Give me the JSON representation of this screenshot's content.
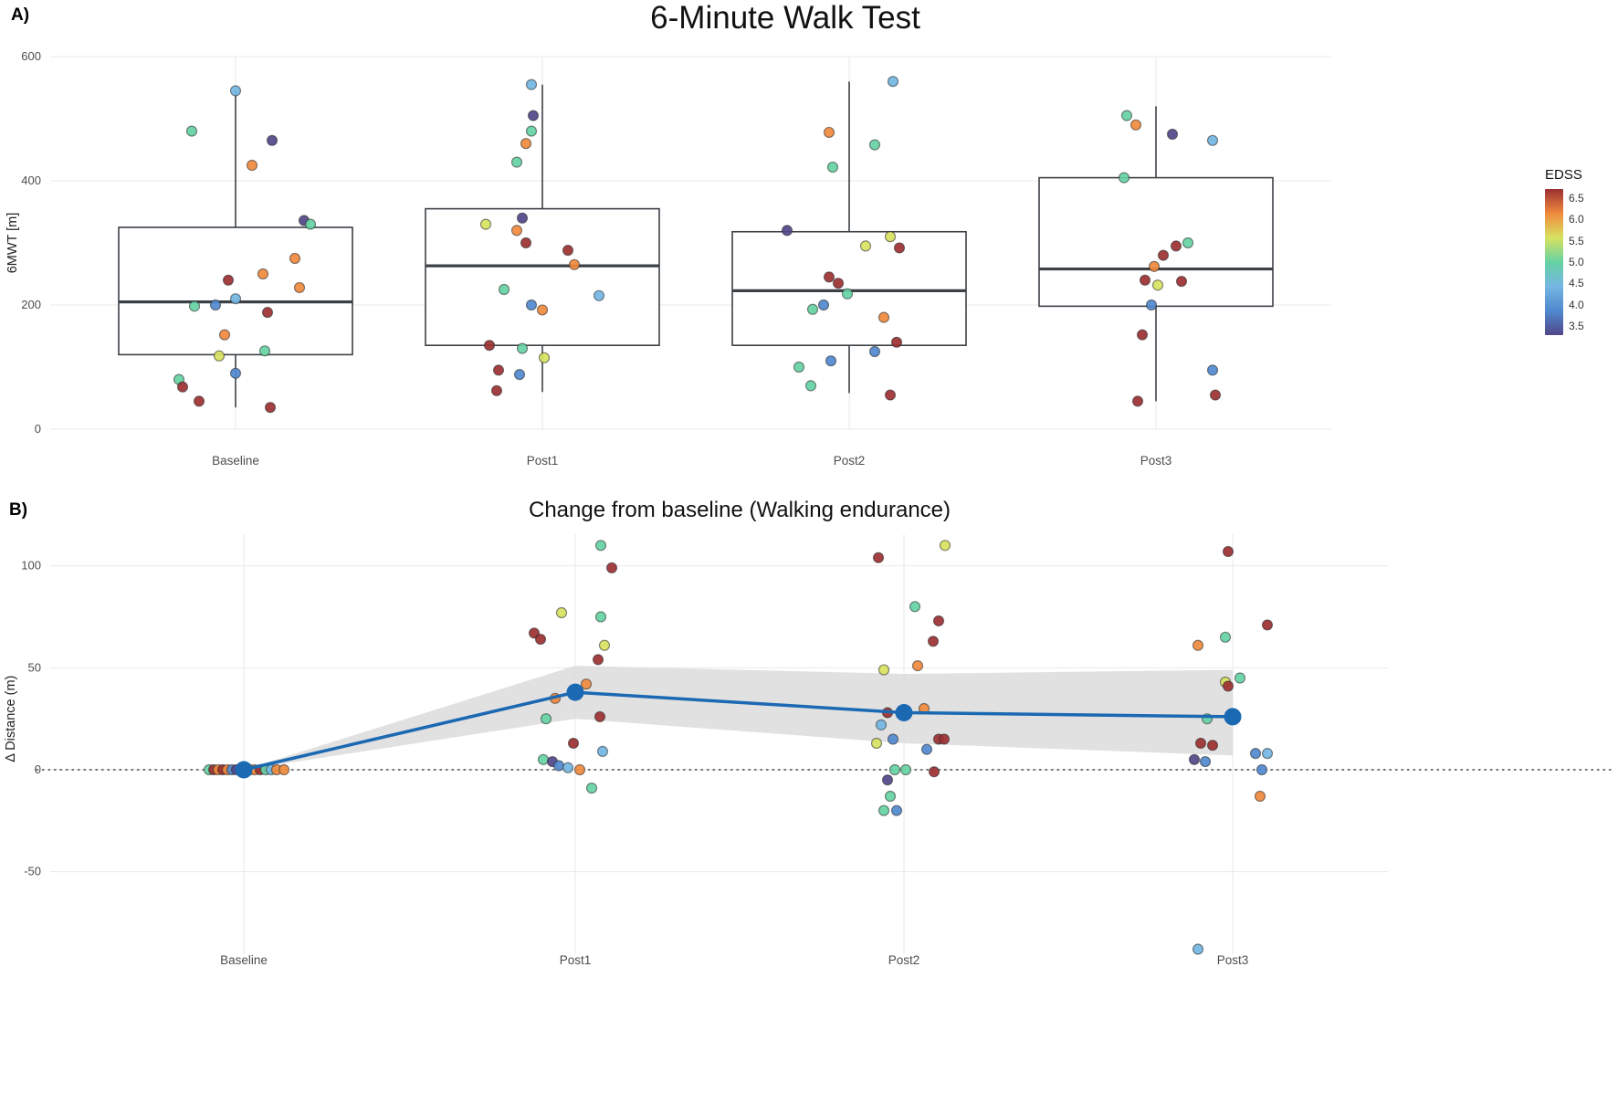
{
  "legend": {
    "title": "EDSS",
    "ticks": [
      "6.5",
      "6.0",
      "5.5",
      "5.0",
      "4.5",
      "4.0",
      "3.5"
    ],
    "stops": [
      {
        "v": 3.5,
        "c": "#514689"
      },
      {
        "v": 4.0,
        "c": "#5089cf"
      },
      {
        "v": 4.5,
        "c": "#74b6e3"
      },
      {
        "v": 5.0,
        "c": "#66d2a4"
      },
      {
        "v": 5.5,
        "c": "#d8e25f"
      },
      {
        "v": 6.0,
        "c": "#f08a3d"
      },
      {
        "v": 6.5,
        "c": "#9c3032"
      }
    ]
  },
  "colors": {
    "mean_line": "#1b69b2",
    "ribbon": "#d9d9d9",
    "box_stroke": "#3c4146",
    "grid": "#e9e9e9",
    "point_stroke": "rgba(40,40,40,0.55)",
    "zero_line": "#444444",
    "tick_text": "#4d4d4d",
    "background": "#ffffff"
  },
  "chart_data": [
    {
      "type": "box",
      "panel_label": "A)",
      "title": "6-Minute Walk Test",
      "ylabel": "6MWT [m]",
      "ylim": [
        0,
        600
      ],
      "yticks": [
        0,
        200,
        400,
        600
      ],
      "categories": [
        "Baseline",
        "Post1",
        "Post2",
        "Post3"
      ],
      "boxes": [
        {
          "lo": 35,
          "q1": 120,
          "median": 205,
          "q3": 325,
          "hi": 545
        },
        {
          "lo": 60,
          "q1": 135,
          "median": 263,
          "q3": 355,
          "hi": 555
        },
        {
          "lo": 58,
          "q1": 135,
          "median": 223,
          "q3": 318,
          "hi": 560
        },
        {
          "lo": 45,
          "q1": 198,
          "median": 258,
          "q3": 405,
          "hi": 520
        }
      ],
      "points": [
        [
          [
            -48,
            480,
            5.0
          ],
          [
            0,
            545,
            4.5
          ],
          [
            40,
            465,
            3.5
          ],
          [
            18,
            425,
            6.0
          ],
          [
            75,
            336,
            3.5
          ],
          [
            82,
            330,
            5.0
          ],
          [
            65,
            275,
            6.0
          ],
          [
            30,
            250,
            6.0
          ],
          [
            -8,
            240,
            6.5
          ],
          [
            70,
            228,
            6.0
          ],
          [
            0,
            210,
            4.5
          ],
          [
            -22,
            200,
            4.0
          ],
          [
            -45,
            198,
            5.0
          ],
          [
            35,
            188,
            6.5
          ],
          [
            -12,
            152,
            6.0
          ],
          [
            32,
            126,
            5.0
          ],
          [
            -18,
            118,
            5.5
          ],
          [
            0,
            90,
            4.0
          ],
          [
            -62,
            80,
            5.0
          ],
          [
            -58,
            68,
            6.5
          ],
          [
            -40,
            45,
            6.5
          ],
          [
            38,
            35,
            6.5
          ]
        ],
        [
          [
            -12,
            555,
            4.5
          ],
          [
            -10,
            505,
            3.5
          ],
          [
            -12,
            480,
            5.0
          ],
          [
            -18,
            460,
            6.0
          ],
          [
            -28,
            430,
            5.0
          ],
          [
            -62,
            330,
            5.5
          ],
          [
            -22,
            340,
            3.5
          ],
          [
            -28,
            320,
            6.0
          ],
          [
            -18,
            300,
            6.5
          ],
          [
            28,
            288,
            6.5
          ],
          [
            35,
            265,
            6.0
          ],
          [
            62,
            215,
            4.5
          ],
          [
            -42,
            225,
            5.0
          ],
          [
            -12,
            200,
            4.0
          ],
          [
            0,
            192,
            6.0
          ],
          [
            -58,
            135,
            6.5
          ],
          [
            -22,
            130,
            5.0
          ],
          [
            2,
            115,
            5.5
          ],
          [
            -48,
            95,
            6.5
          ],
          [
            -25,
            88,
            4.0
          ],
          [
            -50,
            62,
            6.5
          ]
        ],
        [
          [
            48,
            560,
            4.5
          ],
          [
            -22,
            478,
            6.0
          ],
          [
            28,
            458,
            5.0
          ],
          [
            -18,
            422,
            5.0
          ],
          [
            -68,
            320,
            3.5
          ],
          [
            18,
            295,
            5.5
          ],
          [
            45,
            310,
            5.5
          ],
          [
            55,
            292,
            6.5
          ],
          [
            -22,
            245,
            6.5
          ],
          [
            -12,
            235,
            6.5
          ],
          [
            -2,
            218,
            5.0
          ],
          [
            -28,
            200,
            4.0
          ],
          [
            -40,
            193,
            5.0
          ],
          [
            38,
            180,
            6.0
          ],
          [
            52,
            140,
            6.5
          ],
          [
            28,
            125,
            4.0
          ],
          [
            -20,
            110,
            4.0
          ],
          [
            -55,
            100,
            5.0
          ],
          [
            -42,
            70,
            5.0
          ],
          [
            45,
            55,
            6.5
          ]
        ],
        [
          [
            -32,
            505,
            5.0
          ],
          [
            -22,
            490,
            6.0
          ],
          [
            18,
            475,
            3.5
          ],
          [
            62,
            465,
            4.5
          ],
          [
            -35,
            405,
            5.0
          ],
          [
            35,
            300,
            5.0
          ],
          [
            22,
            295,
            6.5
          ],
          [
            8,
            280,
            6.5
          ],
          [
            -2,
            262,
            6.0
          ],
          [
            -12,
            240,
            6.5
          ],
          [
            2,
            232,
            5.5
          ],
          [
            28,
            238,
            6.5
          ],
          [
            -5,
            200,
            4.0
          ],
          [
            -15,
            152,
            6.5
          ],
          [
            62,
            95,
            4.0
          ],
          [
            65,
            55,
            6.5
          ],
          [
            -20,
            45,
            6.5
          ]
        ]
      ]
    },
    {
      "type": "line",
      "panel_label": "B)",
      "title": "Change from baseline (Walking endurance)",
      "ylabel": "Δ Distance (m)",
      "yticks": [
        -50,
        0,
        50,
        100
      ],
      "categories": [
        "Baseline",
        "Post1",
        "Post2",
        "Post3"
      ],
      "mean": [
        0,
        38,
        28,
        26
      ],
      "ribbon_lo": [
        0,
        25,
        13,
        7
      ],
      "ribbon_hi": [
        0,
        51,
        47,
        49
      ],
      "zero_line": 0,
      "points": [
        [
          [
            -38,
            0,
            5.0
          ],
          [
            -33,
            0,
            6.5
          ],
          [
            -28,
            0,
            6.0
          ],
          [
            -23,
            0,
            6.5
          ],
          [
            -18,
            0,
            6.0
          ],
          [
            -13,
            0,
            4.0
          ],
          [
            -8,
            0,
            3.5
          ],
          [
            -3,
            0,
            6.5
          ],
          [
            7,
            0,
            5.5
          ],
          [
            12,
            0,
            6.0
          ],
          [
            18,
            0,
            6.5
          ],
          [
            24,
            0,
            5.0
          ],
          [
            30,
            0,
            4.5
          ],
          [
            36,
            0,
            6.0
          ],
          [
            44,
            0,
            6.0
          ]
        ],
        [
          [
            28,
            110,
            5.0
          ],
          [
            40,
            99,
            6.5
          ],
          [
            -15,
            77,
            5.5
          ],
          [
            28,
            75,
            5.0
          ],
          [
            -45,
            67,
            6.5
          ],
          [
            -38,
            64,
            6.5
          ],
          [
            32,
            61,
            5.5
          ],
          [
            25,
            54,
            6.5
          ],
          [
            12,
            42,
            6.0
          ],
          [
            -22,
            35,
            6.0
          ],
          [
            -32,
            25,
            5.0
          ],
          [
            27,
            26,
            6.5
          ],
          [
            -2,
            13,
            6.5
          ],
          [
            30,
            9,
            4.5
          ],
          [
            -35,
            5,
            5.0
          ],
          [
            -25,
            4,
            3.5
          ],
          [
            -18,
            2,
            4.0
          ],
          [
            -8,
            1,
            4.5
          ],
          [
            5,
            0,
            6.0
          ],
          [
            18,
            -9,
            5.0
          ]
        ],
        [
          [
            45,
            110,
            5.5
          ],
          [
            -28,
            104,
            6.5
          ],
          [
            12,
            80,
            5.0
          ],
          [
            38,
            73,
            6.5
          ],
          [
            32,
            63,
            6.5
          ],
          [
            15,
            51,
            6.0
          ],
          [
            -22,
            49,
            5.5
          ],
          [
            22,
            30,
            6.0
          ],
          [
            -18,
            28,
            6.5
          ],
          [
            -25,
            22,
            4.5
          ],
          [
            38,
            15,
            6.5
          ],
          [
            44,
            15,
            6.5
          ],
          [
            -12,
            15,
            4.0
          ],
          [
            -30,
            13,
            5.5
          ],
          [
            25,
            10,
            4.0
          ],
          [
            -10,
            0,
            5.0
          ],
          [
            2,
            0,
            5.0
          ],
          [
            33,
            -1,
            6.5
          ],
          [
            -18,
            -5,
            3.5
          ],
          [
            -15,
            -13,
            5.0
          ],
          [
            -22,
            -20,
            5.0
          ],
          [
            -8,
            -20,
            4.0
          ]
        ],
        [
          [
            -5,
            107,
            6.5
          ],
          [
            38,
            71,
            6.5
          ],
          [
            -38,
            61,
            6.0
          ],
          [
            -8,
            65,
            5.0
          ],
          [
            8,
            45,
            5.0
          ],
          [
            -8,
            43,
            5.5
          ],
          [
            -5,
            41,
            6.5
          ],
          [
            -28,
            25,
            5.0
          ],
          [
            -22,
            12,
            6.5
          ],
          [
            -35,
            13,
            6.5
          ],
          [
            25,
            8,
            4.0
          ],
          [
            38,
            8,
            4.5
          ],
          [
            -42,
            5,
            3.5
          ],
          [
            -30,
            4,
            4.0
          ],
          [
            32,
            0,
            4.0
          ],
          [
            30,
            -13,
            6.0
          ],
          [
            -38,
            -88,
            4.5
          ]
        ]
      ]
    }
  ]
}
